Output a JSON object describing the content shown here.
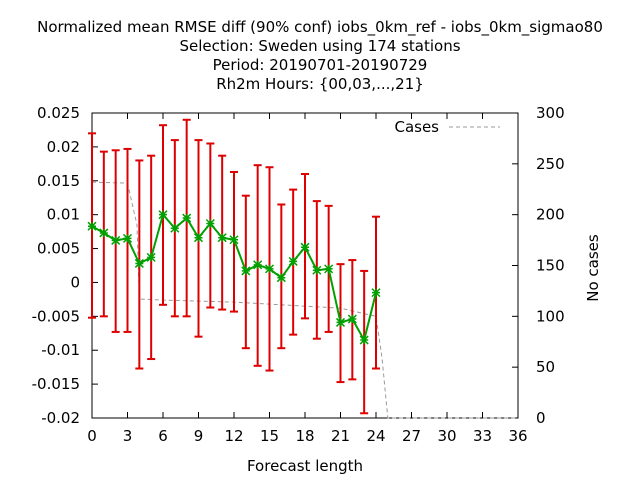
{
  "chart_data": {
    "type": "line",
    "title_lines": [
      "Normalized mean RMSE diff (90% conf) iobs_0km_ref - iobs_0km_sigmao80",
      "Selection: Sweden using   174 stations",
      "Period: 20190701-20190729",
      "Rh2m   Hours: {00,03,...,21}"
    ],
    "xlabel": "Forecast length",
    "ylabel": "",
    "y2label": "No cases",
    "xlim": [
      0,
      36
    ],
    "ylim": [
      -0.02,
      0.025
    ],
    "y2lim": [
      0,
      300
    ],
    "x_ticks": [
      "0",
      "3",
      "6",
      "9",
      "12",
      "15",
      "18",
      "21",
      "24",
      "27",
      "30",
      "33",
      "36"
    ],
    "y_ticks": [
      "0.025",
      "0.02",
      "0.015",
      "0.01",
      "0.005",
      "0",
      "-0.005",
      "-0.01",
      "-0.015",
      "-0.02"
    ],
    "y2_ticks": [
      "300",
      "250",
      "200",
      "150",
      "100",
      "50",
      "0"
    ],
    "grid": false,
    "legend": {
      "position": "top-right",
      "entries": [
        "Cases"
      ]
    },
    "series": [
      {
        "color": "#00a000",
        "marker_color": "#00a000",
        "x": [
          0,
          1,
          2,
          3,
          4,
          5,
          6,
          7,
          8,
          9,
          10,
          11,
          12,
          13,
          14,
          15,
          16,
          17,
          18,
          19,
          20,
          21,
          22,
          23,
          24
        ],
        "values": [
          0.0083,
          0.0073,
          0.0062,
          0.0065,
          0.0028,
          0.0037,
          0.01,
          0.008,
          0.0095,
          0.0066,
          0.0087,
          0.0066,
          0.0063,
          0.0017,
          0.0026,
          0.002,
          0.0007,
          0.0031,
          0.0052,
          0.0018,
          0.002,
          -0.0059,
          -0.0054,
          -0.0085,
          -0.0015
        ],
        "err_low": [
          -0.0052,
          -0.005,
          -0.0073,
          -0.0073,
          -0.0127,
          -0.0113,
          -0.0033,
          -0.005,
          -0.005,
          -0.008,
          -0.0037,
          -0.004,
          -0.0043,
          -0.0097,
          -0.0123,
          -0.013,
          -0.0097,
          -0.0077,
          -0.0053,
          -0.0083,
          -0.0073,
          -0.0147,
          -0.0143,
          -0.0193,
          -0.0127
        ],
        "err_high": [
          0.022,
          0.0193,
          0.0195,
          0.0197,
          0.018,
          0.0187,
          0.0232,
          0.021,
          0.024,
          0.021,
          0.0205,
          0.0187,
          0.0163,
          0.0128,
          0.0173,
          0.017,
          0.0115,
          0.0137,
          0.016,
          0.012,
          0.0113,
          0.0027,
          0.0033,
          0.0017,
          0.0097
        ],
        "error_color": "#dd0000"
      },
      {
        "name": "Cases",
        "color": "#9a9a9a",
        "dashed": true,
        "axis": "y2",
        "x": [
          0,
          3,
          3.8,
          4,
          6,
          9,
          12,
          15,
          18,
          21,
          24,
          24.5,
          25,
          27,
          30,
          33,
          36
        ],
        "values": [
          232,
          231,
          190,
          117,
          116,
          115,
          114,
          112,
          110,
          108,
          100,
          60,
          0,
          0,
          0,
          0,
          0
        ]
      }
    ]
  }
}
